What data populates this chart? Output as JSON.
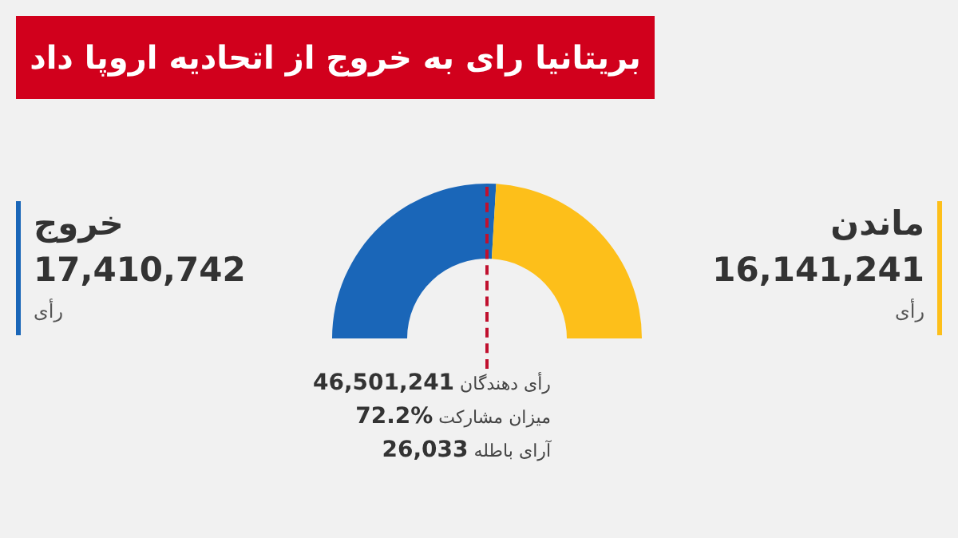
{
  "chart_data": {
    "type": "donut",
    "title": "بریتانیا رای به خروج از اتحادیه اروپا داد",
    "categories": [
      "خروج",
      "ماندن"
    ],
    "values": [
      17410742,
      16141241
    ],
    "colors": [
      "#1a66b8",
      "#fdbf1a"
    ],
    "value_labels": [
      "17,410,742",
      "16,141,241"
    ],
    "annotations": [
      "رأی",
      "رأی",
      "رأی دهندگان 46,501,241",
      "میزان مشارکت 72.2%",
      "آرای باطله 26,033"
    ]
  }
}
